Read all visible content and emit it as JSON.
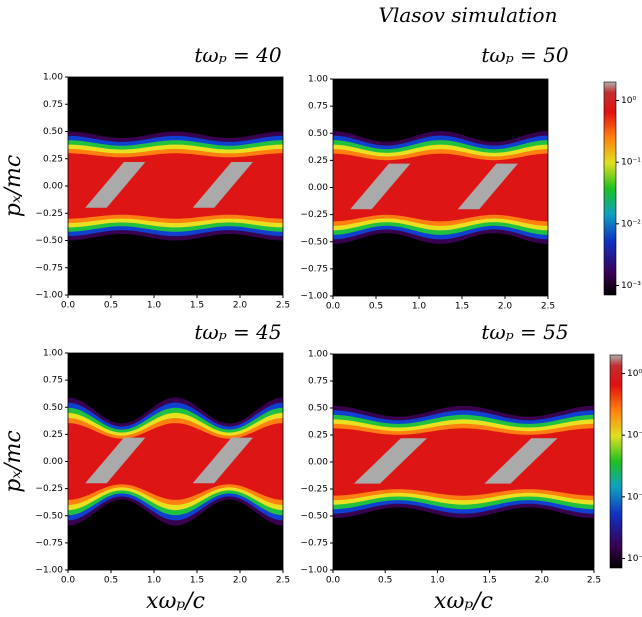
{
  "title": "Vlasov simulation",
  "chart_data": [
    {
      "type": "heatmap",
      "title": "tωₚ = 40",
      "ylabel": "pₓ/mc",
      "xlim": [
        0,
        2.5
      ],
      "ylim": [
        -1,
        1
      ],
      "xticks": [
        {
          "value": 0,
          "label": "0.0"
        },
        {
          "value": 0.5,
          "label": "0.5"
        },
        {
          "value": 1,
          "label": "1.0"
        },
        {
          "value": 1.5,
          "label": "1.5"
        },
        {
          "value": 2,
          "label": "2.0"
        },
        {
          "value": 2.5,
          "label": "2.5"
        }
      ],
      "yticks": [
        {
          "value": -1,
          "label": "−1.00"
        },
        {
          "value": -0.75,
          "label": "−0.75"
        },
        {
          "value": -0.5,
          "label": "−0.50"
        },
        {
          "value": -0.25,
          "label": "−0.25"
        },
        {
          "value": 0,
          "label": "0.00"
        },
        {
          "value": 0.25,
          "label": "0.25"
        },
        {
          "value": 0.5,
          "label": "0.50"
        },
        {
          "value": 0.75,
          "label": "0.75"
        },
        {
          "value": 1,
          "label": "1.00"
        }
      ]
    },
    {
      "type": "heatmap",
      "title": "tωₚ = 50",
      "xlim": [
        0,
        2.5
      ],
      "ylim": [
        -1,
        1
      ],
      "xticks": [
        {
          "value": 0,
          "label": "0.0"
        },
        {
          "value": 0.5,
          "label": "0.5"
        },
        {
          "value": 1,
          "label": "1.0"
        },
        {
          "value": 1.5,
          "label": "1.5"
        },
        {
          "value": 2,
          "label": "2.0"
        },
        {
          "value": 2.5,
          "label": "2.5"
        }
      ],
      "yticks": [
        {
          "value": -1,
          "label": "−1.00"
        },
        {
          "value": -0.75,
          "label": "−0.75"
        },
        {
          "value": -0.5,
          "label": "−0.50"
        },
        {
          "value": -0.25,
          "label": "−0.25"
        },
        {
          "value": 0,
          "label": "0.00"
        },
        {
          "value": 0.25,
          "label": "0.25"
        },
        {
          "value": 0.5,
          "label": "0.50"
        },
        {
          "value": 0.75,
          "label": "0.75"
        },
        {
          "value": 1,
          "label": "1.00"
        }
      ],
      "colorbar": {
        "scale": "log",
        "clim": [
          0.0007,
          2
        ],
        "ticks": [
          {
            "value": 1,
            "label": "10⁰"
          },
          {
            "value": 0.1,
            "label": "10⁻¹"
          },
          {
            "value": 0.01,
            "label": "10⁻²"
          },
          {
            "value": 0.001,
            "label": "10⁻³"
          }
        ]
      }
    },
    {
      "type": "heatmap",
      "title": "tωₚ = 45",
      "ylabel": "pₓ/mc",
      "xlabel": "xωₚ/c",
      "xlim": [
        0,
        2.5
      ],
      "ylim": [
        -1,
        1
      ],
      "xticks": [
        {
          "value": 0,
          "label": "0.0"
        },
        {
          "value": 0.5,
          "label": "0.5"
        },
        {
          "value": 1,
          "label": "1.0"
        },
        {
          "value": 1.5,
          "label": "1.5"
        },
        {
          "value": 2,
          "label": "2.0"
        },
        {
          "value": 2.5,
          "label": "2.5"
        }
      ],
      "yticks": [
        {
          "value": -1,
          "label": "−1.00"
        },
        {
          "value": -0.75,
          "label": "−0.75"
        },
        {
          "value": -0.5,
          "label": "−0.50"
        },
        {
          "value": -0.25,
          "label": "−0.25"
        },
        {
          "value": 0,
          "label": "0.00"
        },
        {
          "value": 0.25,
          "label": "0.25"
        },
        {
          "value": 0.5,
          "label": "0.50"
        },
        {
          "value": 0.75,
          "label": "0.75"
        },
        {
          "value": 1,
          "label": "1.00"
        }
      ]
    },
    {
      "type": "heatmap",
      "title": "tωₚ = 55",
      "xlabel": "xωₚ/c",
      "xlim": [
        0,
        2.5
      ],
      "ylim": [
        -1,
        1
      ],
      "xticks": [
        {
          "value": 0,
          "label": "0.0"
        },
        {
          "value": 0.5,
          "label": "0.5"
        },
        {
          "value": 1,
          "label": "1.0"
        },
        {
          "value": 1.5,
          "label": "1.5"
        },
        {
          "value": 2,
          "label": "2.0"
        },
        {
          "value": 2.5,
          "label": "2.5"
        }
      ],
      "yticks": [
        {
          "value": -1,
          "label": "−1.00"
        },
        {
          "value": -0.75,
          "label": "−0.75"
        },
        {
          "value": -0.5,
          "label": "−0.50"
        },
        {
          "value": -0.25,
          "label": "−0.25"
        },
        {
          "value": 0,
          "label": "0.00"
        },
        {
          "value": 0.25,
          "label": "0.25"
        },
        {
          "value": 0.5,
          "label": "0.50"
        },
        {
          "value": 0.75,
          "label": "0.75"
        },
        {
          "value": 1,
          "label": "1.00"
        }
      ],
      "colorbar": {
        "scale": "log",
        "clim": [
          0.0007,
          2
        ],
        "ticks": [
          {
            "value": 1,
            "label": "10⁰"
          },
          {
            "value": 0.1,
            "label": "10⁻¹"
          },
          {
            "value": 0.01,
            "label": "10⁻²"
          },
          {
            "value": 0.001,
            "label": "10⁻³"
          }
        ]
      }
    }
  ]
}
